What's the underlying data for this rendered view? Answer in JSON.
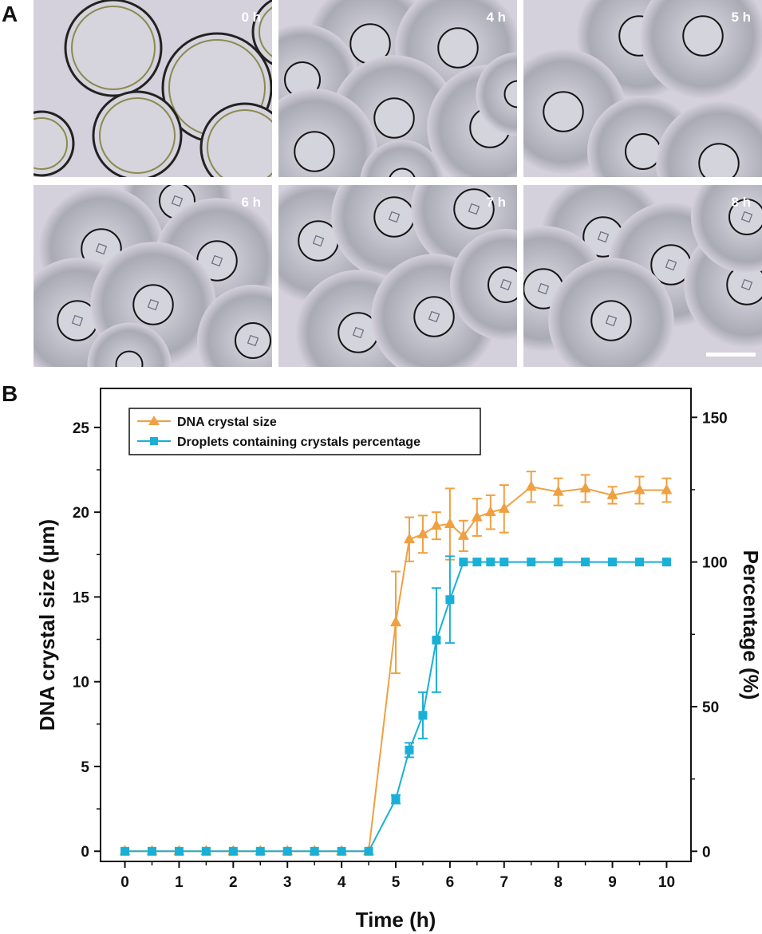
{
  "figure": {
    "panel_a_label": "A",
    "panel_b_label": "B"
  },
  "micrographs": [
    {
      "time_label": "0 h",
      "droplets": "large-empty"
    },
    {
      "time_label": "4 h",
      "droplets": "shrinking"
    },
    {
      "time_label": "5 h",
      "droplets": "shrinking"
    },
    {
      "time_label": "6 h",
      "droplets": "with-crystals"
    },
    {
      "time_label": "7 h",
      "droplets": "with-crystals"
    },
    {
      "time_label": "8 h",
      "droplets": "with-crystals"
    }
  ],
  "colors": {
    "orange": "#F0A040",
    "cyan": "#1AAFD6",
    "micro_bg": "#d4d0dc",
    "halo": "#a9aab4"
  },
  "chart_data": {
    "type": "line",
    "xlabel": "Time (h)",
    "ylabel_left": "DNA crystal size (µm)",
    "ylabel_right": "Percentage (%)",
    "xlim": [
      -0.45,
      10.45
    ],
    "ylim_left": [
      -0.6,
      27.3
    ],
    "ylim_right": [
      -3.5,
      160
    ],
    "x_ticks": [
      "0",
      "1",
      "2",
      "3",
      "4",
      "5",
      "6",
      "7",
      "8",
      "9",
      "10"
    ],
    "y_left_ticks": [
      "0",
      "5",
      "10",
      "15",
      "20",
      "25"
    ],
    "y_right_ticks": [
      "0",
      "50",
      "100",
      "150"
    ],
    "legend_position": "top-left",
    "series": [
      {
        "name": "DNA crystal size",
        "axis": "left",
        "marker": "triangle",
        "x": [
          0,
          0.5,
          1,
          1.5,
          2,
          2.5,
          3,
          3.5,
          4,
          4.5,
          5,
          5.25,
          5.5,
          5.75,
          6,
          6.25,
          6.5,
          6.75,
          7,
          7.5,
          8,
          8.5,
          9,
          9.5,
          10
        ],
        "values": [
          0,
          0,
          0,
          0,
          0,
          0,
          0,
          0,
          0,
          0,
          13.5,
          18.4,
          18.7,
          19.2,
          19.3,
          18.6,
          19.7,
          20.0,
          20.2,
          21.5,
          21.2,
          21.4,
          21.0,
          21.3,
          21.3
        ],
        "errors": [
          0,
          0,
          0,
          0,
          0,
          0,
          0,
          0,
          0,
          0,
          3.0,
          1.3,
          1.1,
          0.8,
          2.1,
          0.9,
          1.1,
          1.0,
          1.4,
          0.9,
          0.8,
          0.8,
          0.5,
          0.8,
          0.7
        ]
      },
      {
        "name": "Droplets containing crystals percentage",
        "axis": "right",
        "marker": "square",
        "x": [
          0,
          0.5,
          1,
          1.5,
          2,
          2.5,
          3,
          3.5,
          4,
          4.5,
          5,
          5.25,
          5.5,
          5.75,
          6,
          6.25,
          6.5,
          6.75,
          7,
          7.5,
          8,
          8.5,
          9,
          9.5,
          10
        ],
        "values": [
          0,
          0,
          0,
          0,
          0,
          0,
          0,
          0,
          0,
          0,
          18,
          35,
          47,
          73,
          87,
          100,
          100,
          100,
          100,
          100,
          100,
          100,
          100,
          100,
          100
        ],
        "errors": [
          0,
          0,
          0,
          0,
          0,
          0,
          0,
          0,
          0,
          0,
          1.5,
          2.5,
          8,
          18,
          15,
          0,
          0,
          0,
          0,
          0,
          0,
          0,
          0,
          0,
          0
        ]
      }
    ]
  }
}
